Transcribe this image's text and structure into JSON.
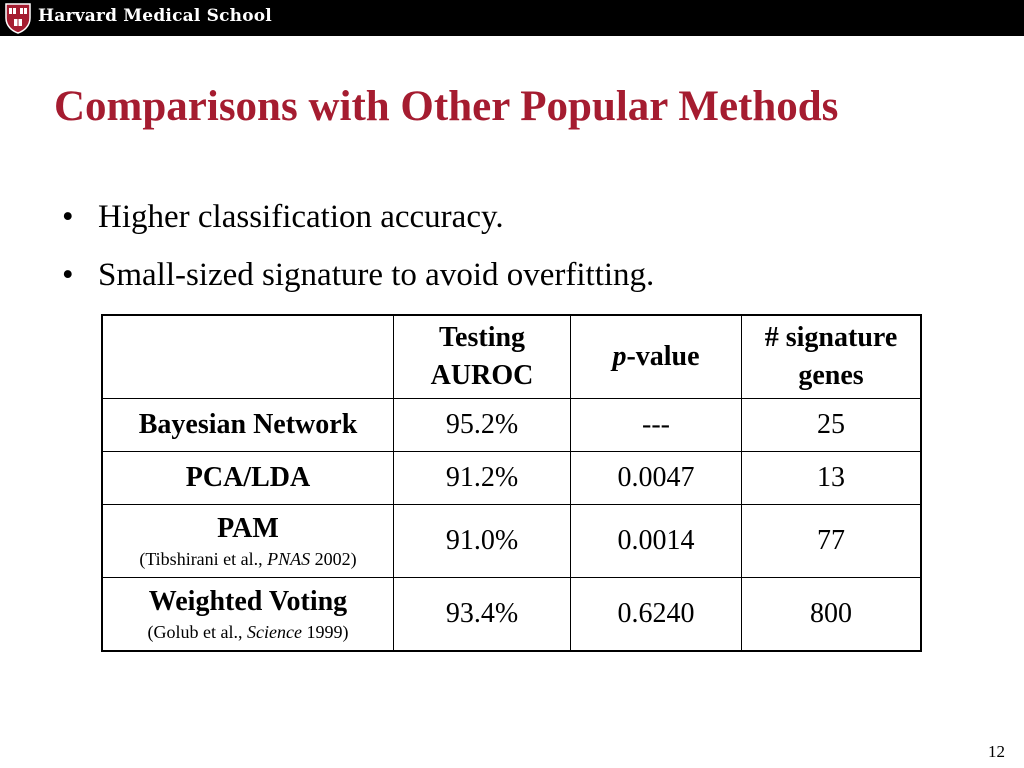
{
  "header": {
    "school": "Harvard Medical School"
  },
  "slide": {
    "title": "Comparisons with Other Popular Methods",
    "bullets": [
      "Higher classification accuracy.",
      "Small-sized signature to avoid overfitting."
    ],
    "page_number": "12"
  },
  "table": {
    "headers": {
      "col1_line1": "Testing",
      "col1_line2": "AUROC",
      "col2_italic": "p",
      "col2_rest": "-value",
      "col3_line1": "# signature",
      "col3_line2": "genes"
    },
    "rows": [
      {
        "method": "Bayesian Network",
        "auroc": "95.2%",
        "pvalue": "---",
        "genes": "25"
      },
      {
        "method": "PCA/LDA",
        "auroc": "91.2%",
        "pvalue": "0.0047",
        "genes": "13"
      },
      {
        "method": "PAM",
        "cite_pre": "(Tibshirani et al., ",
        "cite_journal": "PNAS",
        "cite_post": " 2002)",
        "auroc": "91.0%",
        "pvalue": "0.0014",
        "genes": "77"
      },
      {
        "method": "Weighted Voting",
        "cite_pre": "(Golub et al., ",
        "cite_journal": "Science",
        "cite_post": " 1999)",
        "auroc": "93.4%",
        "pvalue": "0.6240",
        "genes": "800"
      }
    ]
  },
  "colors": {
    "title": "#A51C30",
    "topbar": "#000000",
    "shield": "#A51C30"
  }
}
